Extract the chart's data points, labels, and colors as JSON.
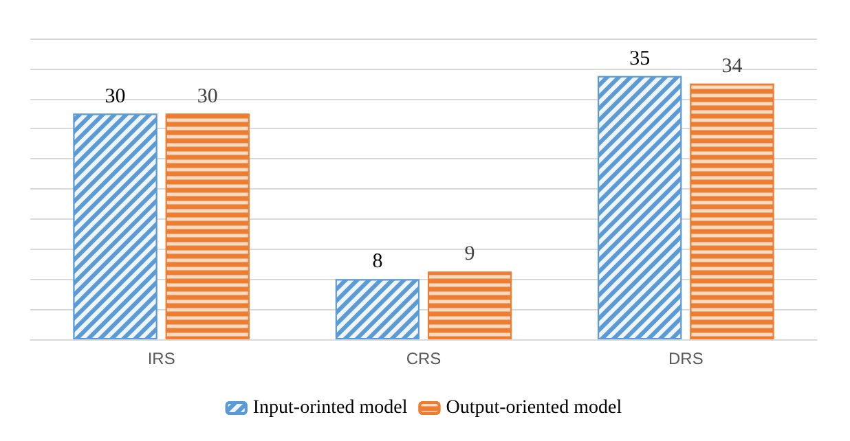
{
  "chart_data": {
    "type": "bar",
    "categories": [
      "IRS",
      "CRS",
      "DRS"
    ],
    "series": [
      {
        "name": "Input-orinted model",
        "color": "#5b9bd5",
        "values": [
          30,
          8,
          35
        ]
      },
      {
        "name": "Output-oriented model",
        "color": "#ed7d31",
        "values": [
          30,
          9,
          34
        ]
      }
    ],
    "ylim": [
      0,
      40
    ],
    "yticks": [
      {
        "value": 0,
        "label": null
      },
      {
        "value": 4,
        "label": null
      },
      {
        "value": 8,
        "label": null
      },
      {
        "value": 12,
        "label": null
      },
      {
        "value": 16,
        "label": null
      },
      {
        "value": 20,
        "label": null
      },
      {
        "value": 24,
        "label": null
      },
      {
        "value": 28,
        "label": null
      },
      {
        "value": 32,
        "label": null
      },
      {
        "value": 36,
        "label": null
      },
      {
        "value": 40,
        "label": null
      }
    ],
    "tick_labels": "x",
    "grid": "y",
    "legend": "bottom",
    "data_labels": true
  }
}
